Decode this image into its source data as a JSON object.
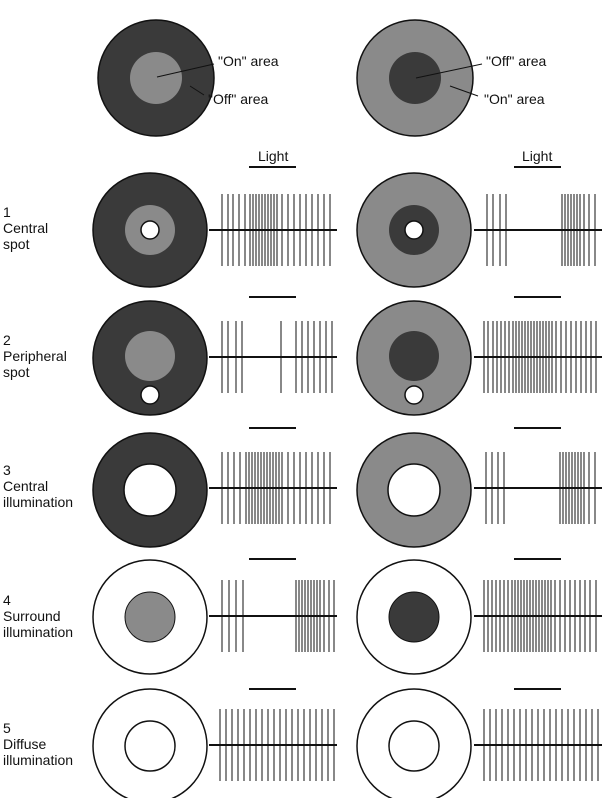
{
  "header": {
    "left_field": {
      "center_label": "\"On\" area",
      "surround_label": "\"Off\" area"
    },
    "right_field": {
      "center_label": "\"Off\" area",
      "surround_label": "\"On\" area"
    },
    "light_label_left": "Light",
    "light_label_right": "Light"
  },
  "colors": {
    "dark": "#3a3a3a",
    "gray": "#8a8a8a",
    "white": "#ffffff",
    "stroke": "#111111"
  },
  "rows": [
    {
      "number": "1",
      "name": [
        "Central",
        "spot"
      ]
    },
    {
      "number": "2",
      "name": [
        "Peripheral",
        "spot"
      ]
    },
    {
      "number": "3",
      "name": [
        "Central",
        "illumination"
      ]
    },
    {
      "number": "4",
      "name": [
        "Surround",
        "illumination"
      ]
    },
    {
      "number": "5",
      "name": [
        "Diffuse",
        "illumination"
      ]
    }
  ]
}
